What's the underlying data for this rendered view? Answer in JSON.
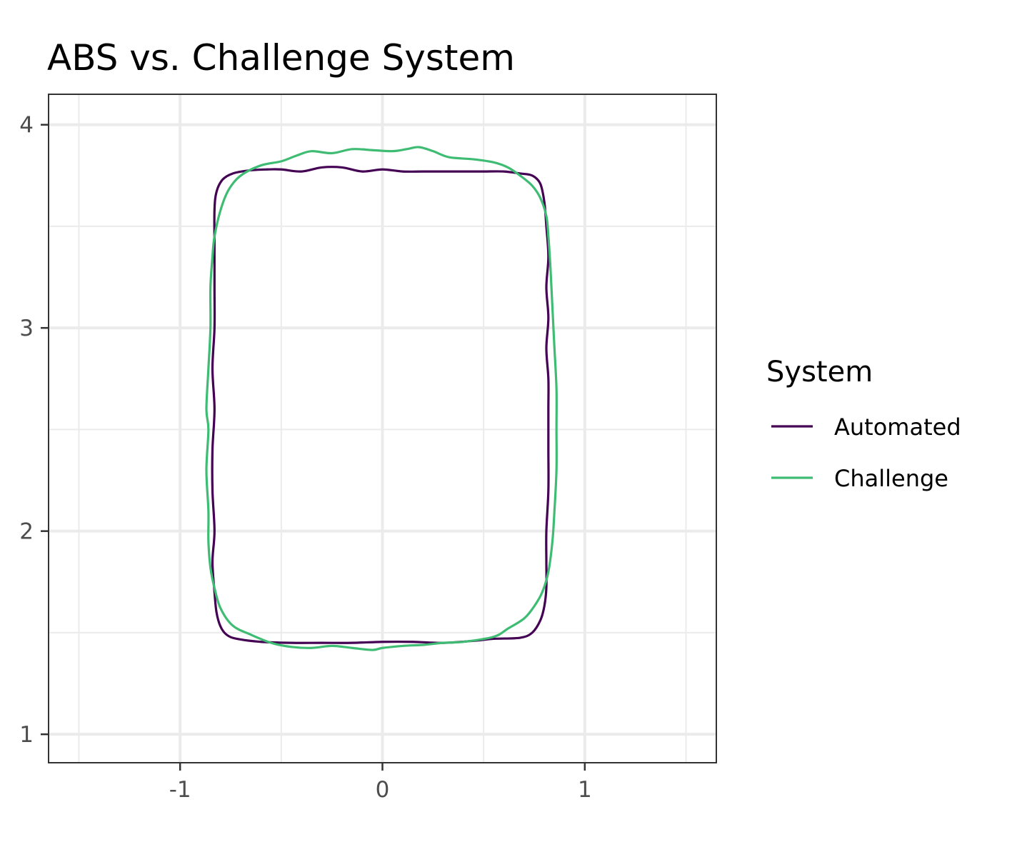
{
  "chart_data": {
    "type": "line",
    "title": "ABS vs. Challenge System",
    "xlabel": "",
    "ylabel": "",
    "xlim": [
      -1.65,
      1.65
    ],
    "ylim": [
      0.86,
      4.15
    ],
    "x_major_ticks": [
      -1,
      0,
      1
    ],
    "x_major_tick_labels": [
      "-1",
      "0",
      "1"
    ],
    "x_minor_ticks": [
      -1.5,
      -0.5,
      0.5,
      1.5
    ],
    "y_major_ticks": [
      1,
      2,
      3,
      4
    ],
    "y_major_tick_labels": [
      "1",
      "2",
      "3",
      "4"
    ],
    "y_minor_ticks": [
      1.5,
      2.5,
      3.5
    ],
    "grid": true,
    "legend": {
      "title": "System",
      "placement": "right"
    },
    "series": [
      {
        "name": "Automated",
        "color": "#440154",
        "closed": true,
        "points": [
          [
            -0.57,
            3.78
          ],
          [
            -0.5,
            3.78
          ],
          [
            -0.4,
            3.77
          ],
          [
            -0.3,
            3.79
          ],
          [
            -0.2,
            3.79
          ],
          [
            -0.1,
            3.77
          ],
          [
            0.0,
            3.78
          ],
          [
            0.1,
            3.77
          ],
          [
            0.2,
            3.77
          ],
          [
            0.3,
            3.77
          ],
          [
            0.4,
            3.77
          ],
          [
            0.5,
            3.77
          ],
          [
            0.6,
            3.77
          ],
          [
            0.68,
            3.76
          ],
          [
            0.74,
            3.75
          ],
          [
            0.78,
            3.71
          ],
          [
            0.8,
            3.62
          ],
          [
            0.81,
            3.5
          ],
          [
            0.82,
            3.35
          ],
          [
            0.81,
            3.2
          ],
          [
            0.82,
            3.05
          ],
          [
            0.81,
            2.9
          ],
          [
            0.82,
            2.75
          ],
          [
            0.82,
            2.6
          ],
          [
            0.82,
            2.4
          ],
          [
            0.82,
            2.2
          ],
          [
            0.81,
            2.0
          ],
          [
            0.81,
            1.85
          ],
          [
            0.81,
            1.72
          ],
          [
            0.8,
            1.63
          ],
          [
            0.78,
            1.56
          ],
          [
            0.74,
            1.5
          ],
          [
            0.68,
            1.475
          ],
          [
            0.55,
            1.47
          ],
          [
            0.45,
            1.46
          ],
          [
            0.3,
            1.45
          ],
          [
            0.15,
            1.455
          ],
          [
            0.0,
            1.455
          ],
          [
            -0.15,
            1.45
          ],
          [
            -0.3,
            1.45
          ],
          [
            -0.45,
            1.45
          ],
          [
            -0.6,
            1.455
          ],
          [
            -0.72,
            1.47
          ],
          [
            -0.77,
            1.49
          ],
          [
            -0.8,
            1.53
          ],
          [
            -0.82,
            1.6
          ],
          [
            -0.83,
            1.7
          ],
          [
            -0.84,
            1.85
          ],
          [
            -0.83,
            2.0
          ],
          [
            -0.84,
            2.2
          ],
          [
            -0.84,
            2.4
          ],
          [
            -0.83,
            2.6
          ],
          [
            -0.84,
            2.8
          ],
          [
            -0.83,
            3.0
          ],
          [
            -0.83,
            3.2
          ],
          [
            -0.83,
            3.4
          ],
          [
            -0.83,
            3.58
          ],
          [
            -0.82,
            3.67
          ],
          [
            -0.79,
            3.73
          ],
          [
            -0.74,
            3.76
          ],
          [
            -0.66,
            3.775
          ]
        ]
      },
      {
        "name": "Challenge",
        "color": "#3fbc73",
        "closed": true,
        "points": [
          [
            -0.6,
            3.8
          ],
          [
            -0.5,
            3.82
          ],
          [
            -0.42,
            3.85
          ],
          [
            -0.35,
            3.87
          ],
          [
            -0.25,
            3.86
          ],
          [
            -0.15,
            3.88
          ],
          [
            -0.05,
            3.875
          ],
          [
            0.05,
            3.87
          ],
          [
            0.12,
            3.88
          ],
          [
            0.18,
            3.89
          ],
          [
            0.25,
            3.87
          ],
          [
            0.33,
            3.84
          ],
          [
            0.45,
            3.83
          ],
          [
            0.55,
            3.815
          ],
          [
            0.62,
            3.79
          ],
          [
            0.68,
            3.75
          ],
          [
            0.74,
            3.7
          ],
          [
            0.78,
            3.64
          ],
          [
            0.81,
            3.55
          ],
          [
            0.82,
            3.45
          ],
          [
            0.83,
            3.3
          ],
          [
            0.84,
            3.1
          ],
          [
            0.85,
            2.9
          ],
          [
            0.86,
            2.7
          ],
          [
            0.86,
            2.5
          ],
          [
            0.86,
            2.3
          ],
          [
            0.85,
            2.1
          ],
          [
            0.84,
            1.95
          ],
          [
            0.82,
            1.8
          ],
          [
            0.79,
            1.7
          ],
          [
            0.75,
            1.63
          ],
          [
            0.7,
            1.57
          ],
          [
            0.62,
            1.52
          ],
          [
            0.55,
            1.48
          ],
          [
            0.4,
            1.455
          ],
          [
            0.3,
            1.45
          ],
          [
            0.2,
            1.44
          ],
          [
            0.1,
            1.435
          ],
          [
            0.0,
            1.425
          ],
          [
            -0.05,
            1.415
          ],
          [
            -0.15,
            1.425
          ],
          [
            -0.25,
            1.435
          ],
          [
            -0.35,
            1.425
          ],
          [
            -0.45,
            1.43
          ],
          [
            -0.55,
            1.45
          ],
          [
            -0.65,
            1.49
          ],
          [
            -0.74,
            1.535
          ],
          [
            -0.8,
            1.62
          ],
          [
            -0.83,
            1.72
          ],
          [
            -0.85,
            1.82
          ],
          [
            -0.86,
            1.95
          ],
          [
            -0.86,
            2.1
          ],
          [
            -0.87,
            2.3
          ],
          [
            -0.86,
            2.5
          ],
          [
            -0.87,
            2.6
          ],
          [
            -0.86,
            2.8
          ],
          [
            -0.85,
            3.0
          ],
          [
            -0.85,
            3.2
          ],
          [
            -0.84,
            3.35
          ],
          [
            -0.83,
            3.45
          ],
          [
            -0.8,
            3.58
          ],
          [
            -0.76,
            3.68
          ],
          [
            -0.7,
            3.75
          ]
        ]
      }
    ]
  }
}
